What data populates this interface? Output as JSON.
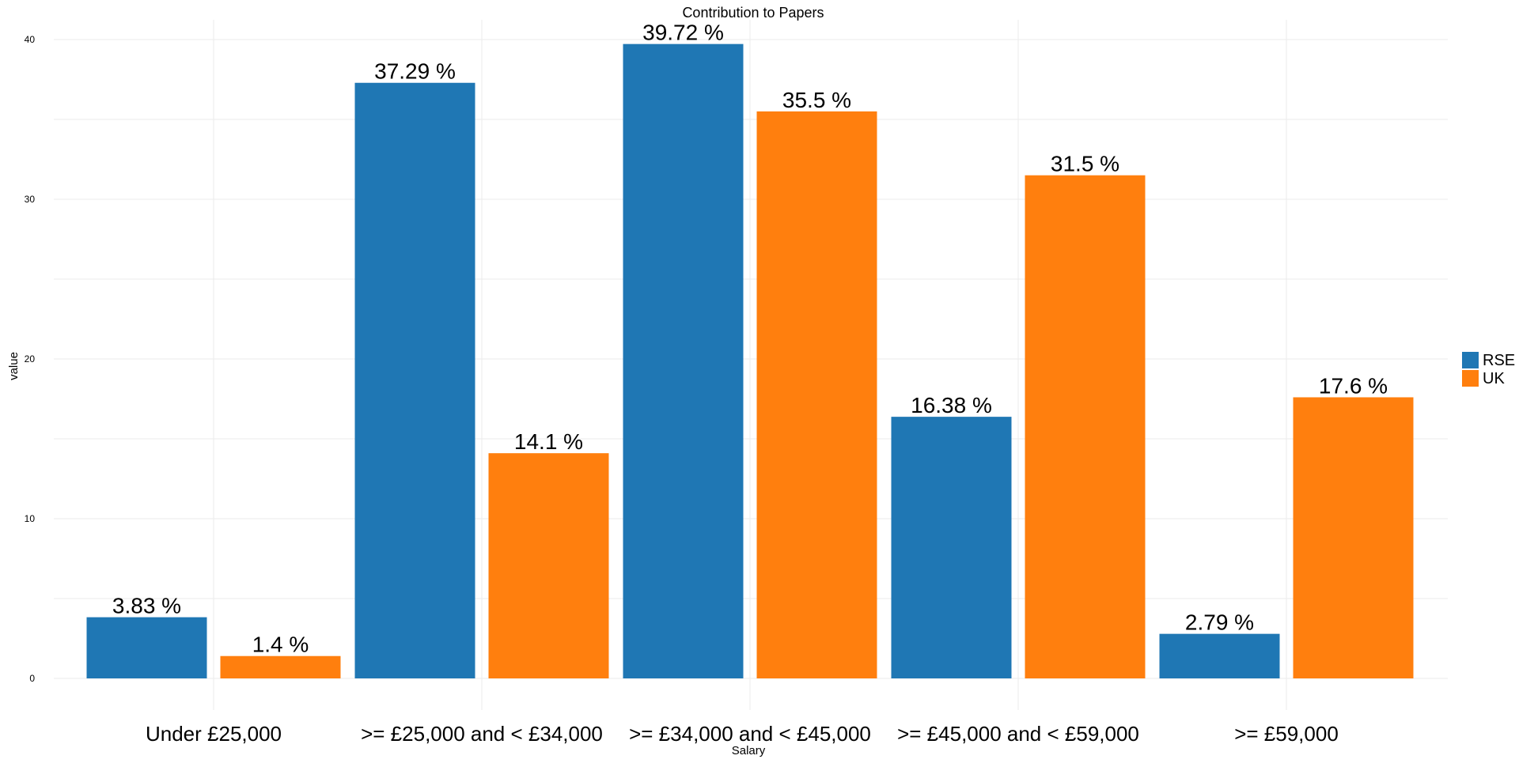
{
  "chart_data": {
    "type": "bar",
    "title": "Contribution to Papers",
    "xlabel": "Salary",
    "ylabel": "value",
    "categories": [
      "Under £25,000",
      ">= £25,000 and < £34,000",
      ">= £34,000 and < £45,000",
      ">= £45,000 and < £59,000",
      ">= £59,000"
    ],
    "series": [
      {
        "name": "RSE",
        "color": "#1f77b4",
        "values": [
          3.83,
          37.29,
          39.72,
          16.38,
          2.79
        ],
        "labels": [
          "3.83 %",
          "37.29 %",
          "39.72 %",
          "16.38 %",
          "2.79 %"
        ]
      },
      {
        "name": "UK",
        "color": "#ff7f0e",
        "values": [
          1.4,
          14.1,
          35.5,
          31.5,
          17.6
        ],
        "labels": [
          "1.4 %",
          "14.1 %",
          "35.5 %",
          "31.5 %",
          "17.6 %"
        ]
      }
    ],
    "ylim": [
      0,
      40
    ],
    "yticks": [
      0,
      10,
      20,
      30,
      40
    ],
    "ytick_labels": [
      "0",
      "10",
      "20",
      "30",
      "40"
    ],
    "grid": true,
    "legend_position": "right"
  }
}
